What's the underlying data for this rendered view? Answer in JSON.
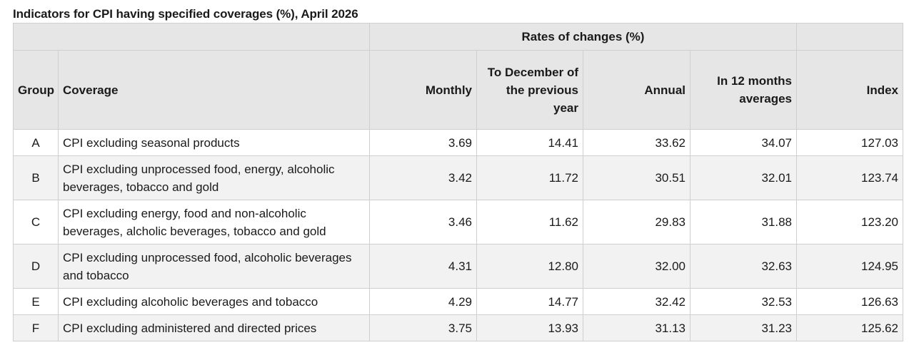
{
  "title": "Indicators for CPI having specified coverages (%), April 2026",
  "header": {
    "rates_group": "Rates of changes (%)",
    "group": "Group",
    "coverage": "Coverage",
    "monthly": "Monthly",
    "to_december": "To December of the previous year",
    "annual": "Annual",
    "in_12_months": "In 12 months averages",
    "index": "Index"
  },
  "rows": [
    {
      "group": "A",
      "coverage": "CPI excluding seasonal products",
      "monthly": "3.69",
      "to_december": "14.41",
      "annual": "33.62",
      "in_12_months": "34.07",
      "index": "127.03"
    },
    {
      "group": "B",
      "coverage": "CPI excluding unprocessed food, energy, alcoholic beverages, tobacco and gold",
      "monthly": "3.42",
      "to_december": "11.72",
      "annual": "30.51",
      "in_12_months": "32.01",
      "index": "123.74"
    },
    {
      "group": "C",
      "coverage": "CPI excluding energy, food and non-alcoholic beverages, alcholic beverages, tobacco and gold",
      "monthly": "3.46",
      "to_december": "11.62",
      "annual": "29.83",
      "in_12_months": "31.88",
      "index": "123.20"
    },
    {
      "group": "D",
      "coverage": "CPI excluding unprocessed food, alcoholic beverages and tobacco",
      "monthly": "4.31",
      "to_december": "12.80",
      "annual": "32.00",
      "in_12_months": "32.63",
      "index": "124.95"
    },
    {
      "group": "E",
      "coverage": "CPI excluding alcoholic beverages and tobacco",
      "monthly": "4.29",
      "to_december": "14.77",
      "annual": "32.42",
      "in_12_months": "32.53",
      "index": "126.63"
    },
    {
      "group": "F",
      "coverage": "CPI excluding administered and directed prices",
      "monthly": "3.75",
      "to_december": "13.93",
      "annual": "31.13",
      "in_12_months": "31.23",
      "index": "125.62"
    }
  ]
}
